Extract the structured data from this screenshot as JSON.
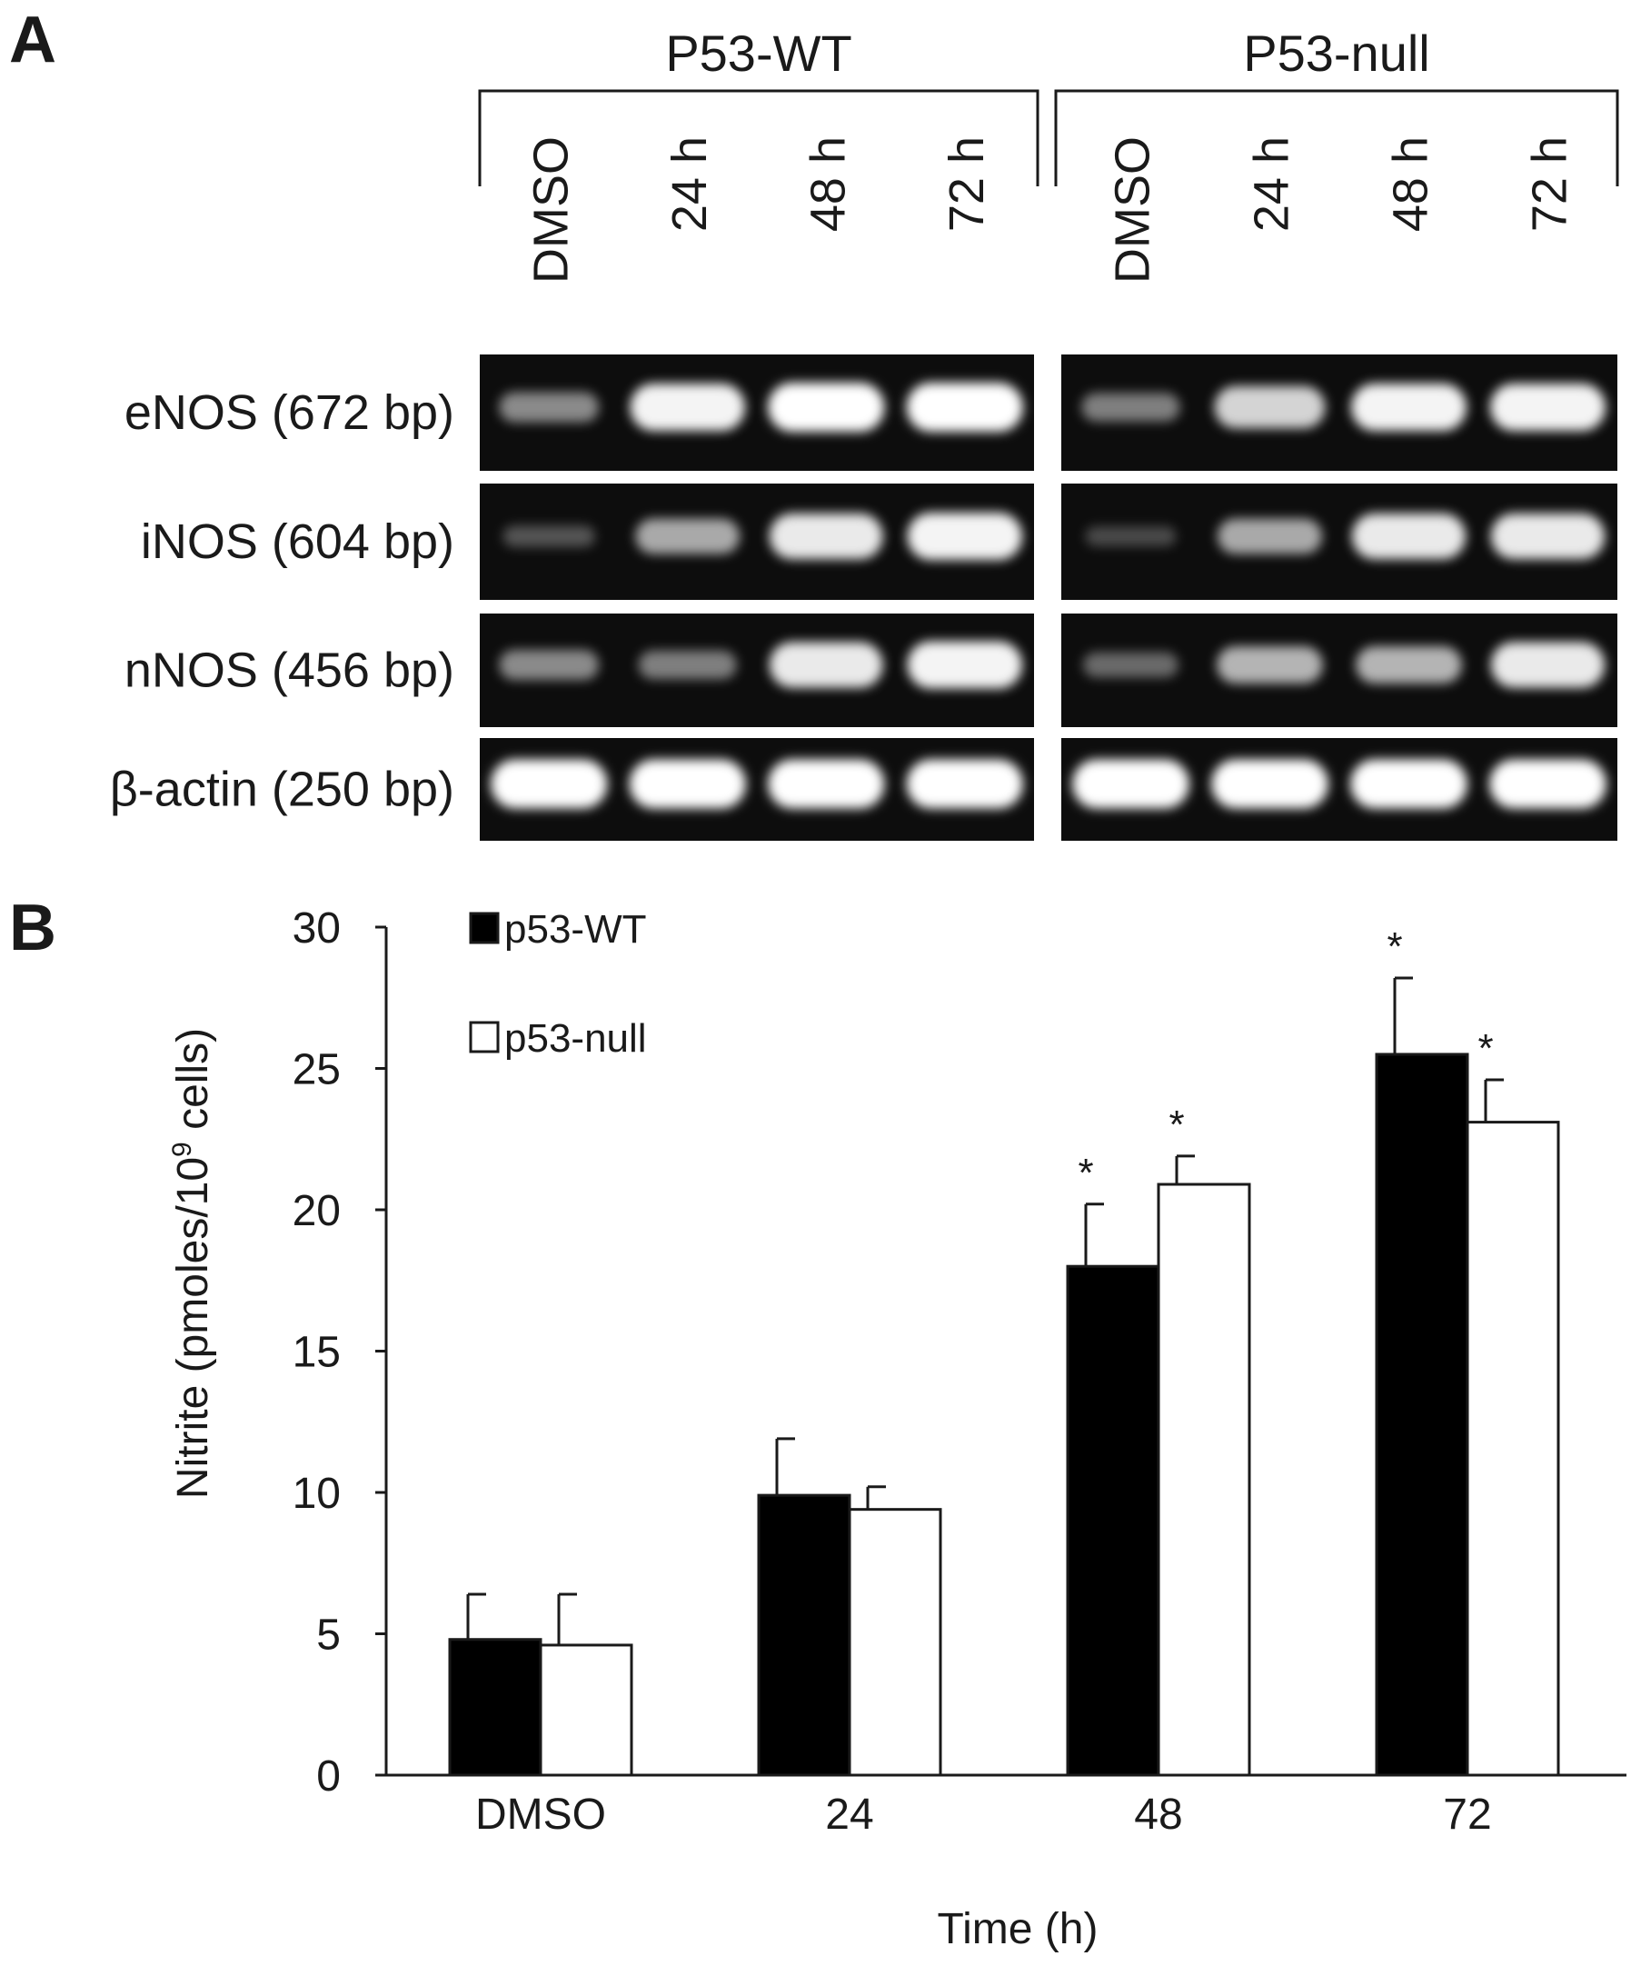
{
  "panel_a": {
    "letter": "A",
    "groups": [
      {
        "name": "P53-WT",
        "lanes": [
          "DMSO",
          "24 h",
          "48 h",
          "72 h"
        ]
      },
      {
        "name": "P53-null",
        "lanes": [
          "DMSO",
          "24 h",
          "48 h",
          "72 h"
        ]
      }
    ],
    "genes": [
      {
        "label": "eNOS (672 bp)",
        "intensity": [
          [
            0.45,
            0.95,
            1.0,
            1.0
          ],
          [
            0.4,
            0.8,
            0.95,
            0.95
          ]
        ]
      },
      {
        "label": "iNOS (604 bp)",
        "intensity": [
          [
            0.2,
            0.6,
            0.9,
            0.95
          ],
          [
            0.15,
            0.6,
            0.9,
            0.9
          ]
        ]
      },
      {
        "label": "nNOS (456 bp)",
        "intensity": [
          [
            0.45,
            0.4,
            0.9,
            0.95
          ],
          [
            0.3,
            0.65,
            0.65,
            0.9
          ]
        ]
      },
      {
        "label": "β-actin (250 bp)",
        "intensity": [
          [
            1.0,
            1.0,
            1.0,
            1.0
          ],
          [
            1.0,
            1.0,
            1.0,
            1.0
          ]
        ]
      }
    ]
  },
  "panel_b": {
    "letter": "B"
  },
  "chart_data": {
    "type": "bar",
    "title": "",
    "xlabel": "Time (h)",
    "ylabel_main": "Nitrite (pmoles/10",
    "ylabel_sup": "9",
    "ylabel_tail": " cells)",
    "ylim": [
      0,
      30
    ],
    "yticks": [
      "0",
      "5",
      "10",
      "15",
      "20",
      "25",
      "30"
    ],
    "grid": false,
    "legend_position": "top-left",
    "categories": [
      "DMSO",
      "24",
      "48",
      "72"
    ],
    "series": [
      {
        "name": "p53-WT",
        "fill": "#000000",
        "values": [
          4.8,
          9.9,
          18.0,
          25.5
        ],
        "errors": [
          1.6,
          2.0,
          2.2,
          2.7
        ],
        "significant": [
          false,
          false,
          true,
          true
        ]
      },
      {
        "name": "p53-null",
        "fill": "#ffffff",
        "values": [
          4.6,
          9.4,
          20.9,
          23.1
        ],
        "errors": [
          1.8,
          0.8,
          1.0,
          1.5
        ],
        "significant": [
          false,
          false,
          true,
          true
        ]
      }
    ],
    "significance_marker": "*"
  },
  "colors": {
    "gel_background": "#0d0d0d",
    "band": "#ffffff",
    "axis": "#1a1a1a"
  }
}
